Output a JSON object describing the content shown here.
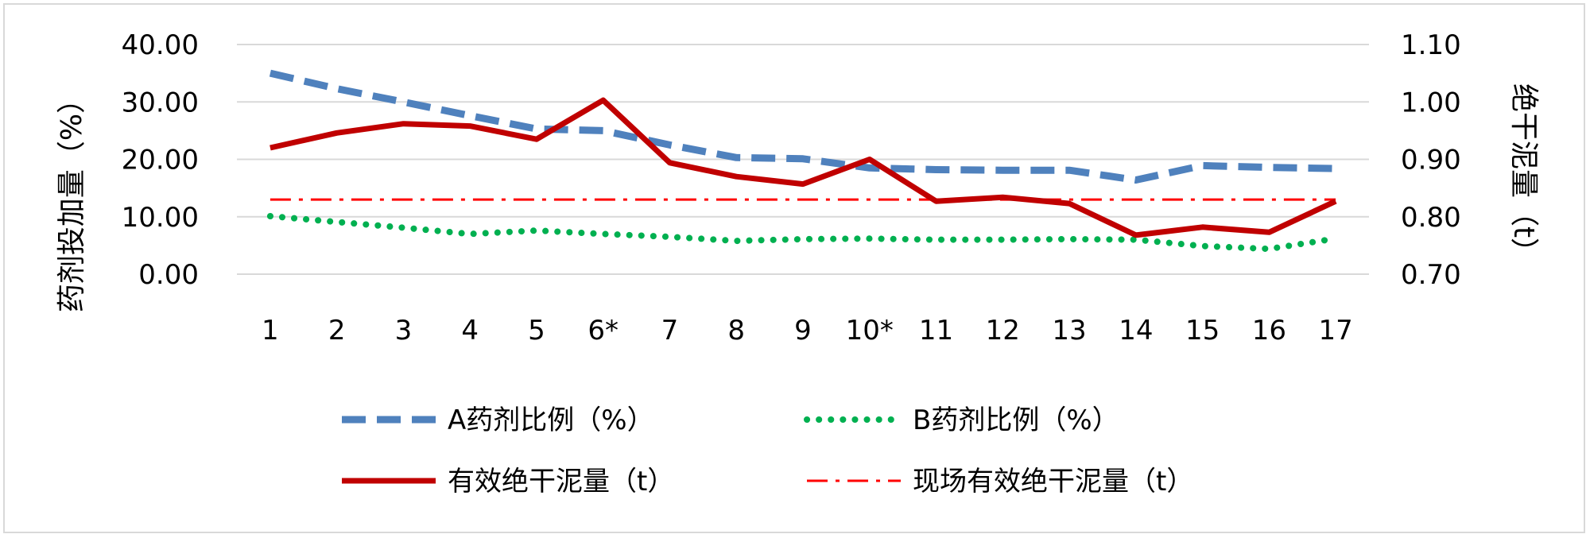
{
  "chart_data": {
    "type": "line",
    "categories": [
      "1",
      "2",
      "3",
      "4",
      "5",
      "6*",
      "7",
      "8",
      "9",
      "10*",
      "11",
      "12",
      "13",
      "14",
      "15",
      "16",
      "17"
    ],
    "ylabel_left": "药剂投加量（%）",
    "ylabel_right": "绝干泥量（t）",
    "ylim_left": [
      0,
      40
    ],
    "ylim_right": [
      0.7,
      1.1
    ],
    "yticks_left": [
      "0.00",
      "10.00",
      "20.00",
      "30.00",
      "40.00"
    ],
    "yticks_right": [
      "0.70",
      "0.80",
      "0.90",
      "1.00",
      "1.10"
    ],
    "grid": true,
    "legend_position": "bottom",
    "series": [
      {
        "name": "A药剂比例（%）",
        "axis": "left",
        "style": "dashed",
        "color": "#4f81bd",
        "values": [
          35.0,
          32.3,
          30.0,
          27.6,
          25.3,
          25.0,
          22.5,
          20.3,
          20.1,
          18.5,
          18.2,
          18.1,
          18.1,
          16.4,
          18.9,
          18.6,
          18.4
        ]
      },
      {
        "name": "B药剂比例（%）",
        "axis": "left",
        "style": "dotted",
        "color": "#00b050",
        "values": [
          10.1,
          9.1,
          8.1,
          7.0,
          7.6,
          7.0,
          6.5,
          5.8,
          6.1,
          6.2,
          6.0,
          6.0,
          6.1,
          6.0,
          4.9,
          4.4,
          6.2
        ]
      },
      {
        "name": "有效绝干泥量（t）",
        "axis": "right",
        "style": "solid",
        "color": "#c00000",
        "values": [
          0.92,
          0.946,
          0.962,
          0.958,
          0.935,
          1.003,
          0.894,
          0.87,
          0.857,
          0.9,
          0.827,
          0.834,
          0.823,
          0.768,
          0.782,
          0.773,
          0.827
        ]
      },
      {
        "name": "现场有效绝干泥量（t）",
        "axis": "right",
        "style": "dashdot",
        "color": "#ff0000",
        "values": [
          0.83,
          0.83,
          0.83,
          0.83,
          0.83,
          0.83,
          0.83,
          0.83,
          0.83,
          0.83,
          0.83,
          0.83,
          0.83,
          0.83,
          0.83,
          0.83,
          0.83
        ]
      }
    ]
  }
}
